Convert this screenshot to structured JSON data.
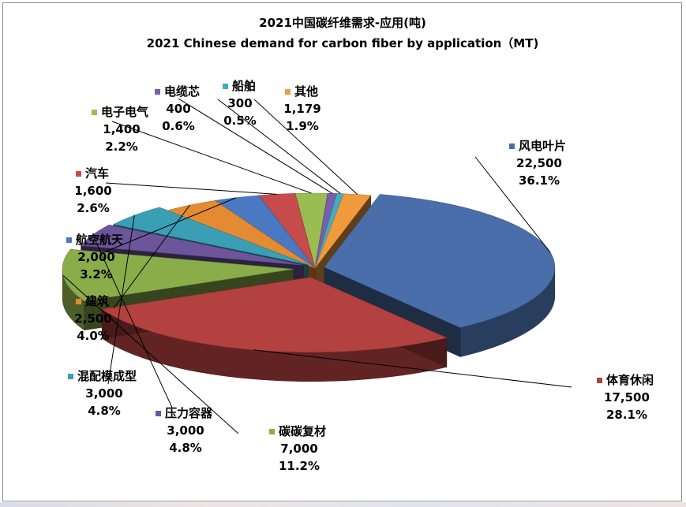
{
  "chart_data": {
    "type": "pie",
    "title": "2021中国碳纤维需求-应用(吨)",
    "subtitle": "2021 Chinese demand for carbon fiber by application（MT)",
    "slices": [
      {
        "label": "风电叶片",
        "value": 22500,
        "value_text": "22,500",
        "pct": "36.1%",
        "color": "#4a6eaa"
      },
      {
        "label": "体育休闲",
        "value": 17500,
        "value_text": "17,500",
        "pct": "28.1%",
        "color": "#b3413f"
      },
      {
        "label": "碳碳复材",
        "value": 7000,
        "value_text": "7,000",
        "pct": "11.2%",
        "color": "#8aad4a"
      },
      {
        "label": "压力容器",
        "value": 3000,
        "value_text": "3,000",
        "pct": "4.8%",
        "color": "#6d559b"
      },
      {
        "label": "混配模成型",
        "value": 3000,
        "value_text": "3,000",
        "pct": "4.8%",
        "color": "#3a9fb5"
      },
      {
        "label": "建筑",
        "value": 2500,
        "value_text": "2,500",
        "pct": "4.0%",
        "color": "#e48a33"
      },
      {
        "label": "航空航天",
        "value": 2000,
        "value_text": "2,000",
        "pct": "3.2%",
        "color": "#4b78c2"
      },
      {
        "label": "汽车",
        "value": 1600,
        "value_text": "1,600",
        "pct": "2.6%",
        "color": "#c64b4b"
      },
      {
        "label": "电子电气",
        "value": 1400,
        "value_text": "1,400",
        "pct": "2.2%",
        "color": "#9abd52"
      },
      {
        "label": "电缆芯",
        "value": 400,
        "value_text": "400",
        "pct": "0.6%",
        "color": "#7a5ea8"
      },
      {
        "label": "船舶",
        "value": 300,
        "value_text": "300",
        "pct": "0.5%",
        "color": "#41adc4"
      },
      {
        "label": "其他",
        "value": 1179,
        "value_text": "1,179",
        "pct": "1.9%",
        "color": "#f09a3e"
      }
    ]
  }
}
